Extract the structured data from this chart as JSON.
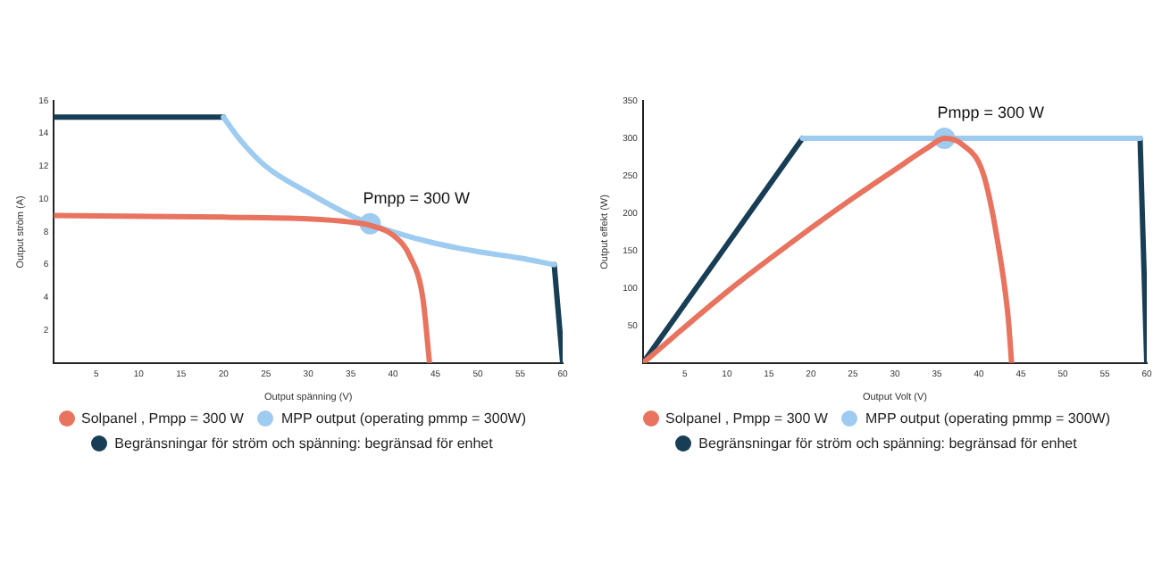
{
  "chart_data": [
    {
      "type": "line",
      "xlabel": "Output spänning (V)",
      "ylabel": "Output ström (A)",
      "xlim": [
        0,
        60
      ],
      "ylim": [
        0,
        16
      ],
      "xticks": [
        5,
        10,
        15,
        20,
        25,
        30,
        35,
        40,
        45,
        50,
        55,
        60
      ],
      "yticks": [
        2,
        4,
        6,
        8,
        10,
        12,
        14,
        16
      ],
      "grid": false,
      "legend": "bottom",
      "marker": "none",
      "line_style": "solid",
      "annotations": [
        "Pmpp = 300 W"
      ],
      "series": [
        {
          "name": "Solpanel , Pmpp = 300 W",
          "color": "#e8735f",
          "x": [
            0,
            20,
            30,
            35,
            37.3,
            40,
            42,
            43.5,
            44.3
          ],
          "values": [
            9,
            8.9,
            8.8,
            8.6,
            8.4,
            7.8,
            6.5,
            4,
            0
          ]
        },
        {
          "name": "MPP output (operating pmmp = 300W)",
          "color": "#9ecbf0",
          "x": [
            20,
            22,
            25,
            30,
            35,
            37.3,
            40,
            45,
            50,
            55,
            59
          ],
          "values": [
            15,
            13.6,
            12,
            10.4,
            9,
            8.5,
            8,
            7.3,
            6.8,
            6.4,
            6
          ]
        },
        {
          "name": "Begränsningar för ström och spänning: begränsad för enhet",
          "color": "#173e55",
          "x": [
            0,
            20,
            40,
            59,
            60
          ],
          "values": [
            15,
            15,
            null,
            6,
            0
          ]
        },
        {
          "type": "scatter",
          "color": "#9ecbf0",
          "marker": "circle",
          "x": [
            37.3
          ],
          "values": [
            8.5
          ]
        }
      ]
    },
    {
      "type": "line",
      "xlabel": "Output Volt (V)",
      "ylabel": "Output effekt (W)",
      "xlim": [
        0,
        60
      ],
      "ylim": [
        0,
        350
      ],
      "xticks": [
        5,
        10,
        15,
        20,
        25,
        30,
        35,
        40,
        45,
        50,
        55,
        60
      ],
      "yticks": [
        50,
        100,
        150,
        200,
        250,
        300,
        350
      ],
      "grid": false,
      "legend": "bottom",
      "marker": "none",
      "line_style": "solid",
      "annotations": [
        "Pmpp = 300 W"
      ],
      "series": [
        {
          "name": "Solpanel , Pmpp = 300 W",
          "color": "#e8735f",
          "x": [
            0,
            10,
            20,
            25,
            30,
            34,
            35.9,
            38,
            40.6,
            42.7,
            43.5,
            43.9
          ],
          "values": [
            0,
            95,
            180,
            220,
            258,
            288,
            300,
            292,
            250,
            130,
            60,
            0
          ]
        },
        {
          "name": "MPP output (operating pmmp = 300W)",
          "color": "#9ecbf0",
          "x": [
            19,
            59.2
          ],
          "values": [
            300,
            300
          ]
        },
        {
          "name": "Begränsningar för ström och spänning: begränsad för enhet",
          "color": "#173e55",
          "x": [
            0,
            19,
            40,
            59.2,
            60
          ],
          "values": [
            0,
            300,
            null,
            300,
            0
          ]
        },
        {
          "type": "scatter",
          "color": "#9ecbf0",
          "marker": "circle",
          "x": [
            35.9
          ],
          "values": [
            300
          ]
        }
      ]
    }
  ]
}
